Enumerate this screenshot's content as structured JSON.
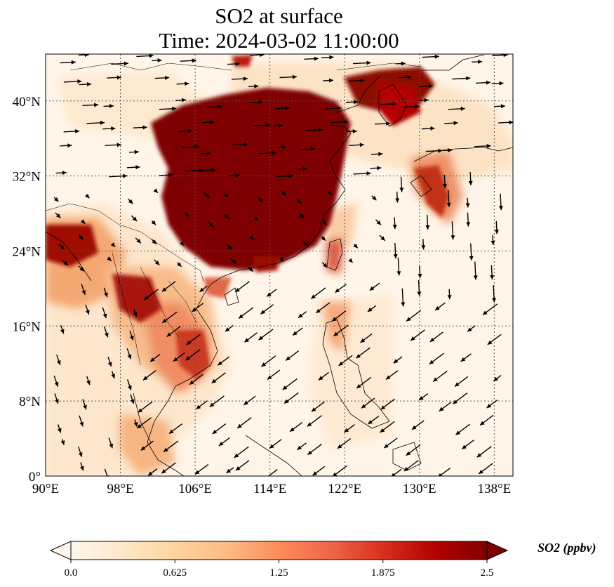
{
  "title": {
    "line1": "SO2 at surface",
    "line2": "Time: 2024-03-02 11:00:00"
  },
  "map": {
    "projection": "PlateCarree",
    "lon_range": [
      90,
      140
    ],
    "lat_range": [
      0,
      45
    ],
    "lon_ticks": [
      {
        "value": 90,
        "label": "90°E"
      },
      {
        "value": 98,
        "label": "98°E"
      },
      {
        "value": 106,
        "label": "106°E"
      },
      {
        "value": 114,
        "label": "114°E"
      },
      {
        "value": 122,
        "label": "122°E"
      },
      {
        "value": 130,
        "label": "130°E"
      },
      {
        "value": 138,
        "label": "138°E"
      }
    ],
    "lat_ticks": [
      {
        "value": 0,
        "label": "0°"
      },
      {
        "value": 8,
        "label": "8°N"
      },
      {
        "value": 16,
        "label": "16°N"
      },
      {
        "value": 24,
        "label": "24°N"
      },
      {
        "value": 32,
        "label": "32°N"
      },
      {
        "value": 40,
        "label": "40°N"
      }
    ],
    "gridlines": "dotted",
    "field": "SO2 concentration (filled), wind vectors (arrows)",
    "colormap": "OrRd"
  },
  "colorbar": {
    "min": 0.0,
    "max": 2.5,
    "ticks": [
      {
        "value": 0.0,
        "label": "0.0"
      },
      {
        "value": 0.625,
        "label": "0.625"
      },
      {
        "value": 1.25,
        "label": "1.25"
      },
      {
        "value": 1.875,
        "label": "1.875"
      },
      {
        "value": 2.5,
        "label": "2.5"
      }
    ],
    "label": "SO2 (ppbv)",
    "extend": "both",
    "colors": [
      "#fff7ec",
      "#fee8c8",
      "#fdd49e",
      "#fdbb84",
      "#fc8d59",
      "#ef6548",
      "#d7301f",
      "#b30000",
      "#7f0000"
    ]
  }
}
